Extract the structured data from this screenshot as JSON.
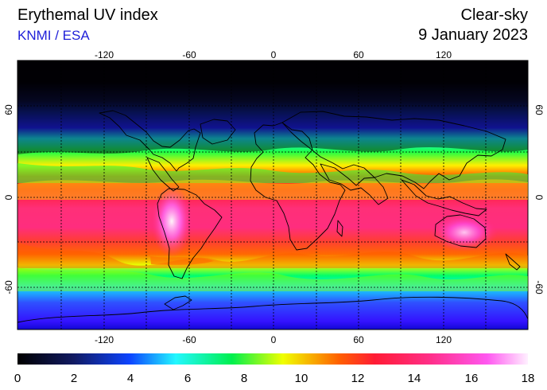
{
  "header": {
    "title": "Erythemal UV index",
    "source": "KNMI / ESA",
    "mode": "Clear-sky",
    "date": "9 January 2023"
  },
  "map": {
    "lon_ticks": [
      "-120",
      "-60",
      "0",
      "60",
      "120"
    ],
    "lat_ticks": [
      "60",
      "0",
      "-60"
    ],
    "colors": {
      "polar_dark": "#000000",
      "blue": "#1e2cff",
      "cyan": "#31d9ff",
      "green": "#23ff36",
      "yellow": "#ffe700",
      "orange": "#ff5c00",
      "red": "#ff1546",
      "magenta": "#ff3fe0",
      "white_high": "#fff2ff"
    }
  },
  "colorbar": {
    "labels": [
      "0",
      "2",
      "4",
      "6",
      "8",
      "10",
      "12",
      "14",
      "16",
      "18"
    ],
    "min": 0,
    "max": 18,
    "stops": [
      {
        "value": 0,
        "color": "#000000"
      },
      {
        "value": 2,
        "color": "#111a62"
      },
      {
        "value": 4,
        "color": "#0d44ff"
      },
      {
        "value": 5.6,
        "color": "#23f7ff"
      },
      {
        "value": 7.6,
        "color": "#00f04e"
      },
      {
        "value": 9.4,
        "color": "#f0ff00"
      },
      {
        "value": 11.3,
        "color": "#ff6000"
      },
      {
        "value": 12.5,
        "color": "#ff1b35"
      },
      {
        "value": 14.5,
        "color": "#ff2f8a"
      },
      {
        "value": 16.5,
        "color": "#ff58f0"
      },
      {
        "value": 18,
        "color": "#fff0ff"
      }
    ]
  }
}
